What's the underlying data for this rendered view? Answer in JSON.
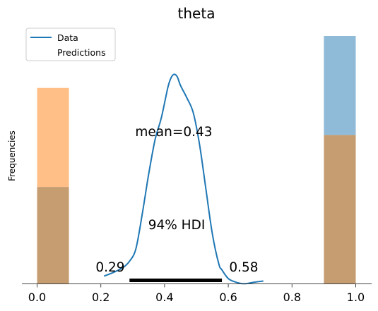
{
  "chart_data": {
    "type": "histogram",
    "title": "theta",
    "ylabel": "Frequencies",
    "xlabel": "",
    "xlim": [
      -0.05,
      1.05
    ],
    "xticks": [
      0.0,
      0.2,
      0.4,
      0.6,
      0.8,
      1.0
    ],
    "xtick_labels": [
      "0.0",
      "0.2",
      "0.4",
      "0.6",
      "0.8",
      "1.0"
    ],
    "legend": {
      "placement": "top-left",
      "entries": [
        "Data",
        "Predictions"
      ]
    },
    "colors": {
      "data": "#1f77b4",
      "predictions": "#ff7f0e",
      "overlap": "#c69d71",
      "axis": "#444444"
    },
    "histograms": [
      {
        "name": "Data",
        "bins": [
          {
            "x0": 0.0,
            "x1": 0.1,
            "value": 0.39
          },
          {
            "x0": 0.9,
            "x1": 1.0,
            "value": 1.0
          }
        ]
      },
      {
        "name": "Predictions",
        "bins": [
          {
            "x0": 0.0,
            "x1": 0.1,
            "value": 0.79
          },
          {
            "x0": 0.9,
            "x1": 1.0,
            "value": 0.6
          }
        ]
      }
    ],
    "kde": {
      "name": "Data",
      "x": [
        0.21,
        0.24,
        0.27,
        0.29,
        0.31,
        0.33,
        0.35,
        0.37,
        0.39,
        0.41,
        0.42,
        0.43,
        0.44,
        0.45,
        0.47,
        0.49,
        0.51,
        0.53,
        0.55,
        0.57,
        0.58,
        0.6,
        0.62,
        0.64,
        0.66,
        0.68,
        0.71
      ],
      "y": [
        0.03,
        0.045,
        0.065,
        0.09,
        0.14,
        0.28,
        0.44,
        0.58,
        0.67,
        0.79,
        0.83,
        0.845,
        0.835,
        0.8,
        0.75,
        0.69,
        0.56,
        0.38,
        0.2,
        0.08,
        0.055,
        0.02,
        0.007,
        0.0,
        0.0,
        0.005,
        0.01
      ]
    },
    "hdi": {
      "prob_label": "94% HDI",
      "lower": 0.29,
      "upper": 0.58,
      "lower_label": "0.29",
      "upper_label": "0.58"
    },
    "mean": {
      "value": 0.43,
      "label": "mean=0.43"
    }
  }
}
